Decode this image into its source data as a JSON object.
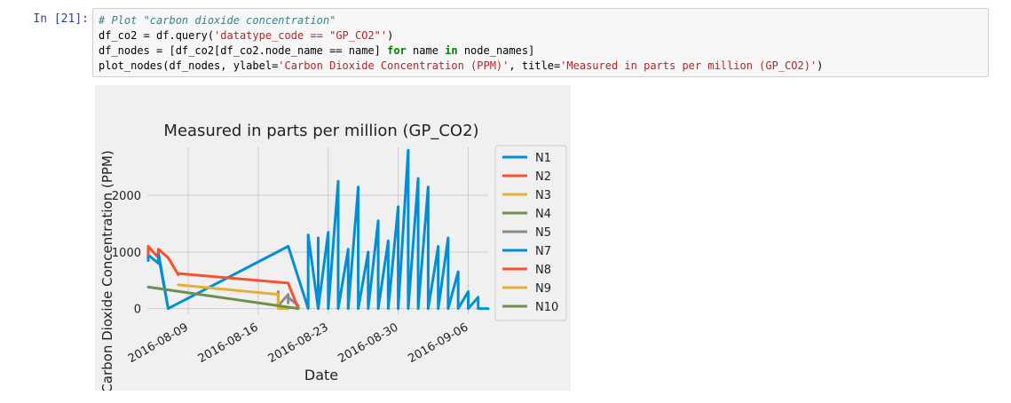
{
  "cell": {
    "prompt": "In [21]:",
    "code_lines": [
      [
        {
          "t": "# Plot \"carbon dioxide concentration\"",
          "c": "cm"
        }
      ],
      [
        {
          "t": "df_co2 = df.query(",
          "c": ""
        },
        {
          "t": "'datatype_code == \"GP_CO2\"'",
          "c": "st"
        },
        {
          "t": ")",
          "c": ""
        }
      ],
      [
        {
          "t": "df_nodes = [df_co2[df_co2.node_name == name] ",
          "c": ""
        },
        {
          "t": "for",
          "c": "kw"
        },
        {
          "t": " name ",
          "c": ""
        },
        {
          "t": "in",
          "c": "kw"
        },
        {
          "t": " node_names]",
          "c": ""
        }
      ],
      [
        {
          "t": "plot_nodes(df_nodes, ylabel=",
          "c": ""
        },
        {
          "t": "'Carbon Dioxide Concentration (PPM)'",
          "c": "st"
        },
        {
          "t": ", title=",
          "c": ""
        },
        {
          "t": "'Measured in parts per million (GP_CO2)'",
          "c": "st"
        },
        {
          "t": ")",
          "c": ""
        }
      ]
    ]
  },
  "chart_data": {
    "type": "line",
    "title": "Measured in parts per million (GP_CO2)",
    "xlabel": "Date",
    "ylabel": "Carbon Dioxide Concentration (PPM)",
    "xlim": [
      "2016-08-05",
      "2016-09-08"
    ],
    "ylim": [
      -100,
      2850
    ],
    "x_ticks": [
      "2016-08-09",
      "2016-08-16",
      "2016-08-23",
      "2016-08-30",
      "2016-09-06"
    ],
    "y_ticks": [
      0,
      1000,
      2000
    ],
    "grid": true,
    "legend_position": "right",
    "series": [
      {
        "name": "N1",
        "color": "#008fd5",
        "x": [
          "2016-08-05",
          "2016-08-05",
          "2016-08-06",
          "2016-08-06",
          "2016-08-07"
        ],
        "y": [
          850,
          950,
          800,
          1000,
          0
        ]
      },
      {
        "name": "N2",
        "color": "#fc4f30",
        "x": [
          "2016-08-05",
          "2016-08-05",
          "2016-08-06",
          "2016-08-06",
          "2016-08-07"
        ],
        "y": [
          950,
          1100,
          900,
          1050,
          900
        ]
      },
      {
        "name": "N3",
        "color": "#e5ae38",
        "x": [],
        "y": []
      },
      {
        "name": "N4",
        "color": "#6d904f",
        "x": [],
        "y": []
      },
      {
        "name": "N5",
        "color": "#8b8b8b",
        "x": [
          "2016-08-18",
          "2016-08-18",
          "2016-08-19",
          "2016-08-19",
          "2016-08-19",
          "2016-08-20",
          "2016-08-20"
        ],
        "y": [
          300,
          50,
          250,
          100,
          200,
          50,
          0
        ]
      },
      {
        "name": "N7",
        "color": "#008fd5",
        "x": [
          "2016-08-06",
          "2016-08-07",
          "2016-08-19",
          "2016-08-21",
          "2016-08-21",
          "2016-08-22",
          "2016-08-22",
          "2016-08-22",
          "2016-08-23",
          "2016-08-23",
          "2016-08-24",
          "2016-08-24",
          "2016-08-25",
          "2016-08-25",
          "2016-08-26",
          "2016-08-26",
          "2016-08-27",
          "2016-08-27",
          "2016-08-28",
          "2016-08-28",
          "2016-08-29",
          "2016-08-29",
          "2016-08-30",
          "2016-08-30",
          "2016-08-31",
          "2016-08-31",
          "2016-09-01",
          "2016-09-01",
          "2016-09-02",
          "2016-09-02",
          "2016-09-03",
          "2016-09-03",
          "2016-09-04",
          "2016-09-04",
          "2016-09-05",
          "2016-09-05",
          "2016-09-06",
          "2016-09-06",
          "2016-09-07",
          "2016-09-07",
          "2016-09-08"
        ],
        "y": [
          950,
          0,
          1100,
          0,
          1300,
          0,
          1250,
          0,
          1350,
          0,
          2250,
          0,
          1050,
          0,
          2150,
          0,
          1000,
          0,
          1550,
          0,
          1200,
          0,
          1800,
          0,
          2800,
          0,
          2300,
          0,
          2150,
          0,
          1100,
          0,
          1250,
          0,
          650,
          0,
          300,
          0,
          200,
          0,
          0
        ]
      },
      {
        "name": "N8",
        "color": "#fc4f30",
        "x": [
          "2016-08-07",
          "2016-08-08",
          "2016-08-08",
          "2016-08-19",
          "2016-08-20"
        ],
        "y": [
          900,
          600,
          620,
          450,
          0
        ]
      },
      {
        "name": "N9",
        "color": "#e5ae38",
        "x": [
          "2016-08-08",
          "2016-08-18",
          "2016-08-18",
          "2016-08-19"
        ],
        "y": [
          420,
          250,
          0,
          0
        ]
      },
      {
        "name": "N10",
        "color": "#6d904f",
        "x": [
          "2016-08-05",
          "2016-08-20"
        ],
        "y": [
          380,
          0
        ]
      }
    ]
  }
}
